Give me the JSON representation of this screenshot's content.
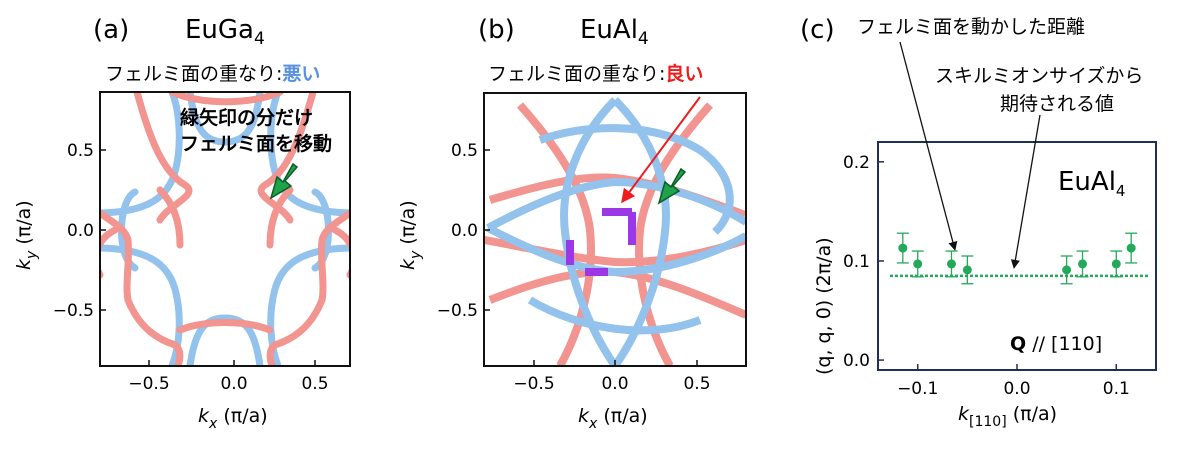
{
  "colors": {
    "red_sheet": "#f2948f",
    "blue_sheet": "#93c2ec",
    "purple_overlap": "#9b37e6",
    "green_arrow": "#1fa34a",
    "green_data": "#22aa5a",
    "red_text": "#ee1c1c",
    "blue_text": "#5a90dd",
    "frame_c": "#1f2f55"
  },
  "panel_a": {
    "letter": "(a)",
    "formula_base": "EuGa",
    "formula_sub": "4",
    "subtitle_prefix": "フェルミ面の重なり:",
    "subtitle_value": "悪い",
    "note_line1": "緑矢印の分だけ",
    "note_line2": "フェルミ面を移動",
    "arrow_icon": "green-arrow-icon"
  },
  "panel_b": {
    "letter": "(b)",
    "formula_base": "EuAl",
    "formula_sub": "4",
    "subtitle_prefix": "フェルミ面の重なり:",
    "subtitle_value": "良い",
    "arrow_icon": "green-arrow-icon"
  },
  "panel_c": {
    "letter": "(c)",
    "annotation_top": "フェルミ面を動かした距離",
    "annotation_mid_line1": "スキルミオンサイズから",
    "annotation_mid_line2": "期待される値",
    "inset_formula_base": "EuAl",
    "inset_formula_sub": "4",
    "q_bold": "Q",
    "q_rest": " // [110]"
  },
  "axes_ab": {
    "xlabel_var": "k",
    "xlabel_sub": "x",
    "xlabel_unit": " (π/a)",
    "ylabel_var": "k",
    "ylabel_sub": "y",
    "ylabel_unit": " (π/a)",
    "xticks": [
      -0.5,
      0.0,
      0.5
    ],
    "yticks": [
      -0.5,
      0.0,
      0.5
    ],
    "xtick_labels": [
      "−0.5",
      "0.0",
      "0.5"
    ],
    "ytick_labels": [
      "−0.5",
      "0.0",
      "0.5"
    ]
  },
  "chart_data": [
    {
      "type": "line",
      "panel": "a",
      "xlim": [
        -0.85,
        0.85
      ],
      "ylim": [
        -0.85,
        0.85
      ],
      "series": [
        {
          "color": "red",
          "x": [
            -0.45,
            -0.3,
            -0.2,
            -0.1,
            -0.08,
            -0.1,
            -0.2,
            -0.3,
            -0.45
          ],
          "y": [
            0.45,
            0.33,
            0.2,
            0.1,
            0.0,
            -0.1,
            -0.2,
            -0.33,
            -0.45
          ]
        },
        {
          "color": "blue",
          "x": [
            -0.85,
            -0.55,
            -0.35,
            -0.2,
            -0.1
          ],
          "y": [
            0.1,
            0.2,
            0.35,
            0.55,
            0.85
          ]
        }
      ]
    },
    {
      "type": "line",
      "panel": "b",
      "xlim": [
        -0.85,
        0.85
      ],
      "ylim": [
        -0.85,
        0.85
      ],
      "series": [
        {
          "color": "blue",
          "x": [
            -0.8,
            -0.4,
            0.0,
            0.4,
            0.8
          ],
          "y": [
            0.0,
            0.2,
            0.25,
            0.2,
            0.0
          ]
        },
        {
          "color": "red",
          "x": [
            -0.8,
            -0.4,
            0.0,
            0.4,
            0.8
          ],
          "y": [
            0.0,
            -0.2,
            -0.25,
            -0.2,
            0.0
          ]
        }
      ]
    },
    {
      "type": "scatter",
      "panel": "c",
      "xlabel_var": "k",
      "xlabel_sub": "[110]",
      "xlabel_unit": " (π/a)",
      "ylabel_text": "(q, q, 0) (2π/a)",
      "xlim": [
        -0.14,
        0.14
      ],
      "ylim": [
        -0.01,
        0.22
      ],
      "xticks": [
        -0.1,
        0.0,
        0.1
      ],
      "yticks": [
        0.0,
        0.1,
        0.2
      ],
      "xtick_labels": [
        "−0.1",
        "0.0",
        "0.1"
      ],
      "ytick_labels": [
        "0.0",
        "0.1",
        "0.2"
      ],
      "points": [
        {
          "x": -0.115,
          "y": 0.113,
          "err": 0.015
        },
        {
          "x": -0.1,
          "y": 0.097,
          "err": 0.013
        },
        {
          "x": -0.066,
          "y": 0.097,
          "err": 0.013
        },
        {
          "x": -0.05,
          "y": 0.091,
          "err": 0.014
        },
        {
          "x": 0.05,
          "y": 0.091,
          "err": 0.014
        },
        {
          "x": 0.066,
          "y": 0.097,
          "err": 0.013
        },
        {
          "x": 0.1,
          "y": 0.097,
          "err": 0.013
        },
        {
          "x": 0.115,
          "y": 0.113,
          "err": 0.015
        }
      ],
      "reference_line_y": 0.085
    }
  ]
}
